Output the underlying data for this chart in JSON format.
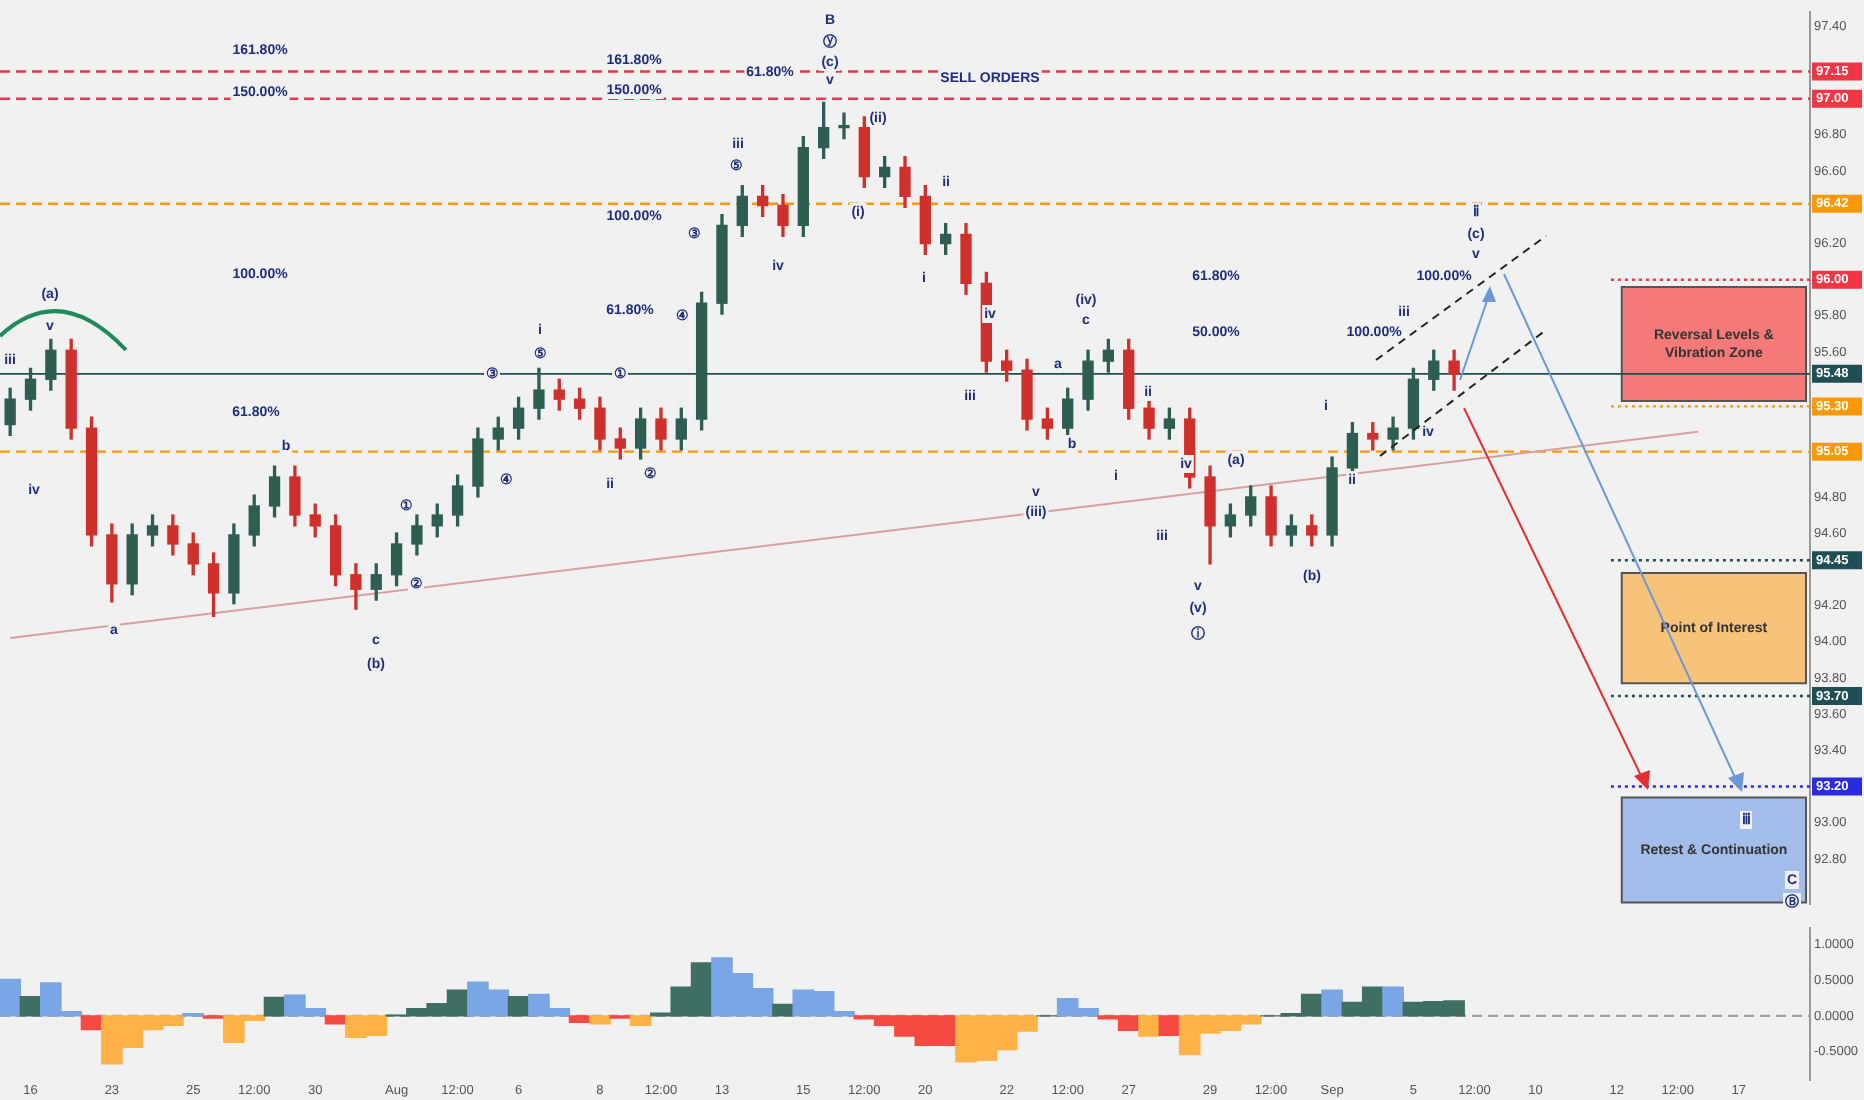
{
  "chart_data": [
    {
      "type": "candlestick",
      "categories": [
        null,
        null,
        null,
        null,
        null,
        null,
        null,
        null,
        null,
        null,
        null,
        null,
        null,
        null,
        null,
        null,
        null,
        null,
        null,
        null,
        null,
        null,
        null,
        null,
        null,
        null,
        null,
        null,
        null,
        null,
        null,
        null,
        null,
        null,
        null,
        null,
        null,
        null,
        null,
        null,
        null,
        null,
        null,
        null,
        null,
        null,
        null,
        null,
        null,
        null,
        null,
        null,
        null,
        null,
        null,
        null,
        null,
        null,
        null,
        null,
        null,
        null,
        null,
        null,
        null,
        null,
        null,
        null,
        null,
        null,
        null,
        null,
        null,
        null,
        null,
        null,
        null,
        null,
        null,
        null,
        null,
        null,
        null,
        null,
        null,
        null,
        null,
        null,
        null
      ],
      "ohlc": [
        [
          95.2,
          95.4,
          95.14,
          95.34
        ],
        [
          95.34,
          95.51,
          95.28,
          95.45
        ],
        [
          95.45,
          95.67,
          95.39,
          95.61
        ],
        [
          95.61,
          95.67,
          95.12,
          95.18
        ],
        [
          95.18,
          95.24,
          94.53,
          94.59
        ],
        [
          94.59,
          94.65,
          94.22,
          94.32
        ],
        [
          94.32,
          94.65,
          94.26,
          94.59
        ],
        [
          94.59,
          94.7,
          94.53,
          94.64
        ],
        [
          94.64,
          94.7,
          94.48,
          94.54
        ],
        [
          94.54,
          94.6,
          94.37,
          94.43
        ],
        [
          94.43,
          94.49,
          94.14,
          94.27
        ],
        [
          94.27,
          94.65,
          94.21,
          94.59
        ],
        [
          94.59,
          94.81,
          94.53,
          94.75
        ],
        [
          94.75,
          94.97,
          94.69,
          94.91
        ],
        [
          94.91,
          94.97,
          94.64,
          94.7
        ],
        [
          94.7,
          94.76,
          94.58,
          94.64
        ],
        [
          94.64,
          94.7,
          94.31,
          94.37
        ],
        [
          94.37,
          94.43,
          94.18,
          94.29
        ],
        [
          94.29,
          94.43,
          94.23,
          94.37
        ],
        [
          94.37,
          94.6,
          94.31,
          94.54
        ],
        [
          94.54,
          94.7,
          94.48,
          94.64
        ],
        [
          94.64,
          94.76,
          94.58,
          94.7
        ],
        [
          94.7,
          94.92,
          94.64,
          94.86
        ],
        [
          94.86,
          95.18,
          94.8,
          95.12
        ],
        [
          95.12,
          95.24,
          95.06,
          95.18
        ],
        [
          95.18,
          95.35,
          95.12,
          95.29
        ],
        [
          95.29,
          95.51,
          95.23,
          95.39
        ],
        [
          95.39,
          95.45,
          95.28,
          95.34
        ],
        [
          95.34,
          95.4,
          95.23,
          95.29
        ],
        [
          95.29,
          95.35,
          95.06,
          95.12
        ],
        [
          95.12,
          95.18,
          95.01,
          95.07
        ],
        [
          95.07,
          95.29,
          95.01,
          95.23
        ],
        [
          95.23,
          95.29,
          95.06,
          95.12
        ],
        [
          95.12,
          95.29,
          95.06,
          95.23
        ],
        [
          95.23,
          95.93,
          95.17,
          95.87
        ],
        [
          95.87,
          96.36,
          95.81,
          96.3
        ],
        [
          96.3,
          96.52,
          96.24,
          96.46
        ],
        [
          96.46,
          96.52,
          96.35,
          96.41
        ],
        [
          96.41,
          96.47,
          96.24,
          96.3
        ],
        [
          96.3,
          96.79,
          96.24,
          96.73
        ],
        [
          96.73,
          96.98,
          96.67,
          96.84
        ],
        [
          96.84,
          96.92,
          96.78,
          96.84
        ],
        [
          96.84,
          96.9,
          96.51,
          96.57
        ],
        [
          96.57,
          96.68,
          96.51,
          96.62
        ],
        [
          96.62,
          96.68,
          96.4,
          96.46
        ],
        [
          96.46,
          96.52,
          96.14,
          96.2
        ],
        [
          96.2,
          96.31,
          96.14,
          96.25
        ],
        [
          96.25,
          96.31,
          95.92,
          95.98
        ],
        [
          95.98,
          96.04,
          95.49,
          95.55
        ],
        [
          95.55,
          95.61,
          95.44,
          95.5
        ],
        [
          95.5,
          95.56,
          95.17,
          95.23
        ],
        [
          95.23,
          95.29,
          95.12,
          95.18
        ],
        [
          95.18,
          95.4,
          95.12,
          95.34
        ],
        [
          95.34,
          95.61,
          95.28,
          95.55
        ],
        [
          95.55,
          95.67,
          95.49,
          95.61
        ],
        [
          95.61,
          95.67,
          95.23,
          95.29
        ],
        [
          95.29,
          95.35,
          95.12,
          95.18
        ],
        [
          95.18,
          95.29,
          95.12,
          95.23
        ],
        [
          95.23,
          95.29,
          94.85,
          94.91
        ],
        [
          94.91,
          94.97,
          94.43,
          94.64
        ],
        [
          94.64,
          94.76,
          94.58,
          94.7
        ],
        [
          94.7,
          94.86,
          94.64,
          94.8
        ],
        [
          94.8,
          94.86,
          94.53,
          94.59
        ],
        [
          94.59,
          94.7,
          94.53,
          94.64
        ],
        [
          94.64,
          94.7,
          94.53,
          94.59
        ],
        [
          94.59,
          95.02,
          94.53,
          94.96
        ],
        [
          94.96,
          95.21,
          94.9,
          95.15
        ],
        [
          95.15,
          95.21,
          95.06,
          95.12
        ],
        [
          95.12,
          95.24,
          95.06,
          95.18
        ],
        [
          95.18,
          95.51,
          95.12,
          95.45
        ],
        [
          95.45,
          95.61,
          95.39,
          95.55
        ],
        [
          95.55,
          95.61,
          95.39,
          95.48
        ],
        null,
        null,
        null,
        null,
        null,
        null,
        null,
        null,
        null,
        null,
        null,
        null,
        null,
        null,
        null,
        null,
        null
      ],
      "colors": [
        "#2e5e52",
        "#2e5e52",
        "#2e5e52",
        "#d0302b",
        "#d0302b",
        "#d0302b",
        "#2e5e52",
        "#2e5e52",
        "#d0302b",
        "#d0302b",
        "#d0302b",
        "#2e5e52",
        "#2e5e52",
        "#2e5e52",
        "#d0302b",
        "#d0302b",
        "#d0302b",
        "#d0302b",
        "#2e5e52",
        "#2e5e52",
        "#2e5e52",
        "#2e5e52",
        "#2e5e52",
        "#2e5e52",
        "#2e5e52",
        "#2e5e52",
        "#2e5e52",
        "#d0302b",
        "#d0302b",
        "#d0302b",
        "#d0302b",
        "#2e5e52",
        "#d0302b",
        "#2e5e52",
        "#2e5e52",
        "#2e5e52",
        "#2e5e52",
        "#d0302b",
        "#d0302b",
        "#2e5e52",
        "#2e5e52",
        "#2e5e52",
        "#d0302b",
        "#2e5e52",
        "#d0302b",
        "#d0302b",
        "#2e5e52",
        "#d0302b",
        "#d0302b",
        "#d0302b",
        "#d0302b",
        "#d0302b",
        "#2e5e52",
        "#2e5e52",
        "#2e5e52",
        "#d0302b",
        "#d0302b",
        "#2e5e52",
        "#d0302b",
        "#d0302b",
        "#2e5e52",
        "#2e5e52",
        "#d0302b",
        "#2e5e52",
        "#d0302b",
        "#2e5e52",
        "#2e5e52",
        "#d0302b",
        "#2e5e52",
        "#2e5e52",
        "#2e5e52",
        "#d0302b",
        null,
        null,
        null,
        null,
        null,
        null,
        null,
        null,
        null,
        null,
        null,
        null,
        null,
        null,
        null,
        null,
        null
      ],
      "ylim": [
        92.55,
        97.48
      ],
      "yticks": [
        {
          "value": 97.4,
          "label": "97.40"
        },
        {
          "value": 96.8,
          "label": "96.80"
        },
        {
          "value": 96.6,
          "label": "96.60"
        },
        {
          "value": 96.2,
          "label": "96.20"
        },
        {
          "value": 95.8,
          "label": "95.80"
        },
        {
          "value": 95.6,
          "label": "95.60"
        },
        {
          "value": 94.8,
          "label": "94.80"
        },
        {
          "value": 94.6,
          "label": "94.60"
        },
        {
          "value": 94.2,
          "label": "94.20"
        },
        {
          "value": 94.0,
          "label": "94.00"
        },
        {
          "value": 93.8,
          "label": "93.80"
        },
        {
          "value": 93.6,
          "label": "93.60"
        },
        {
          "value": 93.4,
          "label": "93.40"
        },
        {
          "value": 93.0,
          "label": "93.00"
        },
        {
          "value": 92.8,
          "label": "92.80"
        }
      ],
      "tick_labels": "y",
      "series": [
        {
          "type": "line",
          "color": "#d9a0a0",
          "values": [
            94.02,
            null,
            null,
            null,
            null,
            null,
            null,
            null,
            null,
            null,
            null,
            null,
            null,
            null,
            null,
            null,
            null,
            null,
            null,
            null,
            null,
            null,
            null,
            null,
            null,
            null,
            null,
            null,
            null,
            null,
            null,
            null,
            null,
            null,
            null,
            null,
            null,
            null,
            null,
            null,
            null,
            null,
            null,
            null,
            null,
            null,
            null,
            null,
            null,
            null,
            null,
            null,
            null,
            null,
            null,
            null,
            null,
            null,
            null,
            null,
            null,
            null,
            null,
            null,
            null,
            null,
            null,
            null,
            null,
            null,
            null,
            null,
            null,
            null,
            null,
            null,
            null,
            null,
            null,
            null,
            null,
            null,
            null,
            95.16,
            null,
            null,
            null,
            null,
            null
          ]
        }
      ],
      "ref_lines": [
        {
          "axis": "y",
          "value": 97.15,
          "label": "97.15",
          "color": "#f23645",
          "line_style": "dashed"
        },
        {
          "axis": "y",
          "value": 97.0,
          "label": "97.00",
          "color": "#f23645",
          "line_style": "dashed"
        },
        {
          "axis": "y",
          "value": 96.42,
          "label": "96.42",
          "color": "#ff9800",
          "line_style": "dashed"
        },
        {
          "axis": "y",
          "value": 96.0,
          "label": "96.00",
          "color": "#f23645",
          "line_style": "dotted"
        },
        {
          "axis": "y",
          "value": 95.48,
          "label": "95.48",
          "color": "#1f4e55",
          "line_style": "solid"
        },
        {
          "axis": "y",
          "value": 95.3,
          "label": "95.30",
          "color": "#ff9800",
          "line_style": "dotted"
        },
        {
          "axis": "y",
          "value": 95.05,
          "label": "95.05",
          "color": "#ff9800",
          "line_style": "dashed"
        },
        {
          "axis": "y",
          "value": 94.45,
          "label": "94.45",
          "color": "#1f4e55",
          "line_style": "dotted"
        },
        {
          "axis": "y",
          "value": 93.7,
          "label": "93.70",
          "color": "#1f4e55",
          "line_style": "dotted"
        },
        {
          "axis": "y",
          "value": 93.2,
          "label": "93.20",
          "color": "#2a2ae0",
          "line_style": "dotted"
        }
      ],
      "bands": [
        {
          "axis": "y",
          "from": 95.33,
          "to": 95.96,
          "label": "Reversal Levels & Vibration Zone",
          "color": "#f47a7a"
        },
        {
          "axis": "y",
          "from": 93.77,
          "to": 94.38,
          "label": "Point of Interest",
          "color": "#f7c27a"
        },
        {
          "axis": "y",
          "from": 92.56,
          "to": 93.14,
          "label": "Retest & Continuation",
          "color": "#a3bdea"
        }
      ],
      "annotations": [
        "SELL ORDERS",
        "161.80%",
        "150.00%",
        "100.00%",
        "61.80%",
        "161.80%",
        "150.00%",
        "100.00%",
        "61.80%",
        "61.80%",
        "61.80%",
        "50.00%",
        "100.00%",
        "100.00%",
        "iii",
        "iv",
        "v",
        "(a)",
        "a",
        "b",
        "c",
        "(b)",
        "①",
        "②",
        "③",
        "④",
        "⑤",
        "i",
        "ii",
        "①",
        "②",
        "③",
        "④",
        "⑤",
        "iii",
        "iv",
        "v",
        "(c)",
        "ⓨ",
        "B",
        "(i)",
        "(ii)",
        "i",
        "ii",
        "iii",
        "iv",
        "v",
        "(iii)",
        "a",
        "b",
        "c",
        "(iv)",
        "i",
        "ii",
        "iii",
        "iv",
        "v",
        "(v)",
        "ⓘ",
        "(a)",
        "(b)",
        "i",
        "ii",
        "iii",
        "iv",
        "v",
        "(c)",
        "ⅱ",
        "ⅲ",
        "C",
        "Ⓑ"
      ]
    },
    {
      "type": "bar",
      "categories": [
        null,
        "16",
        null,
        null,
        null,
        "23",
        null,
        null,
        null,
        "25",
        null,
        null,
        "12:00",
        null,
        null,
        "30",
        null,
        null,
        null,
        "Aug",
        null,
        null,
        "12:00",
        null,
        null,
        "6",
        null,
        null,
        null,
        "8",
        null,
        null,
        "12:00",
        null,
        null,
        "13",
        null,
        null,
        null,
        "15",
        null,
        null,
        "12:00",
        null,
        null,
        "20",
        null,
        null,
        null,
        "22",
        null,
        null,
        "12:00",
        null,
        null,
        "27",
        null,
        null,
        null,
        "29",
        null,
        null,
        "12:00",
        null,
        null,
        "Sep",
        null,
        null,
        null,
        "5",
        null,
        null,
        "12:00",
        null,
        null,
        "10",
        null,
        null,
        null,
        "12",
        null,
        null,
        "12:00",
        null,
        null,
        "17",
        null,
        null,
        null
      ],
      "values": [
        0.51,
        0.27,
        0.46,
        0.06,
        -0.19,
        -0.67,
        -0.44,
        -0.19,
        -0.13,
        0.03,
        -0.03,
        -0.37,
        -0.06,
        0.26,
        0.29,
        0.1,
        -0.11,
        -0.3,
        -0.27,
        0.01,
        0.1,
        0.17,
        0.36,
        0.47,
        0.36,
        0.27,
        0.3,
        0.1,
        -0.09,
        -0.11,
        -0.03,
        -0.13,
        0.04,
        0.4,
        0.74,
        0.81,
        0.59,
        0.38,
        0.16,
        0.36,
        0.34,
        0.06,
        -0.04,
        -0.13,
        -0.28,
        -0.41,
        -0.41,
        -0.64,
        -0.62,
        -0.47,
        -0.21,
        0.0,
        0.24,
        0.1,
        -0.04,
        -0.2,
        -0.28,
        -0.27,
        -0.54,
        -0.24,
        -0.2,
        -0.11,
        0.0,
        0.03,
        0.3,
        0.36,
        0.19,
        0.4,
        0.4,
        0.19,
        0.2,
        0.21,
        null,
        null,
        null,
        null,
        null,
        null,
        null,
        null,
        null,
        null,
        null,
        null,
        null,
        null,
        null,
        null,
        null
      ],
      "colors": [
        "#7ba6e6",
        "#3f6e62",
        "#7ba6e6",
        "#7ba6e6",
        "#f44a42",
        "#ffb347",
        "#ffb347",
        "#ffb347",
        "#ffb347",
        "#7ba6e6",
        "#f44a42",
        "#ffb347",
        "#ffb347",
        "#3f6e62",
        "#7ba6e6",
        "#7ba6e6",
        "#f44a42",
        "#ffb347",
        "#ffb347",
        "#3f6e62",
        "#3f6e62",
        "#3f6e62",
        "#3f6e62",
        "#7ba6e6",
        "#7ba6e6",
        "#3f6e62",
        "#7ba6e6",
        "#7ba6e6",
        "#f44a42",
        "#ffb347",
        "#f44a42",
        "#ffb347",
        "#3f6e62",
        "#3f6e62",
        "#3f6e62",
        "#7ba6e6",
        "#7ba6e6",
        "#7ba6e6",
        "#3f6e62",
        "#7ba6e6",
        "#7ba6e6",
        "#7ba6e6",
        "#f44a42",
        "#f44a42",
        "#f44a42",
        "#f44a42",
        "#f44a42",
        "#ffb347",
        "#ffb347",
        "#ffb347",
        "#ffb347",
        "#3f6e62",
        "#7ba6e6",
        "#7ba6e6",
        "#f44a42",
        "#f44a42",
        "#ffb347",
        "#f44a42",
        "#ffb347",
        "#ffb347",
        "#ffb347",
        "#ffb347",
        "#3f6e62",
        "#3f6e62",
        "#3f6e62",
        "#7ba6e6",
        "#3f6e62",
        "#3f6e62",
        "#7ba6e6",
        "#3f6e62",
        "#3f6e62",
        "#3f6e62",
        null,
        null,
        null,
        null,
        null,
        null,
        null,
        null,
        null,
        null,
        null,
        null,
        null,
        null,
        null,
        null,
        null
      ],
      "ylim": [
        -0.9,
        1.23
      ],
      "yticks": [
        {
          "value": 1,
          "label": "1.0000"
        },
        {
          "value": 0.5,
          "label": "0.5000"
        },
        {
          "value": 0,
          "label": "0.0000"
        },
        {
          "value": -0.5,
          "label": "-0.5000"
        }
      ],
      "ref_lines": [
        {
          "axis": "y",
          "value": 0,
          "color": "#a0a0a0",
          "line_style": "dashed"
        }
      ]
    }
  ]
}
